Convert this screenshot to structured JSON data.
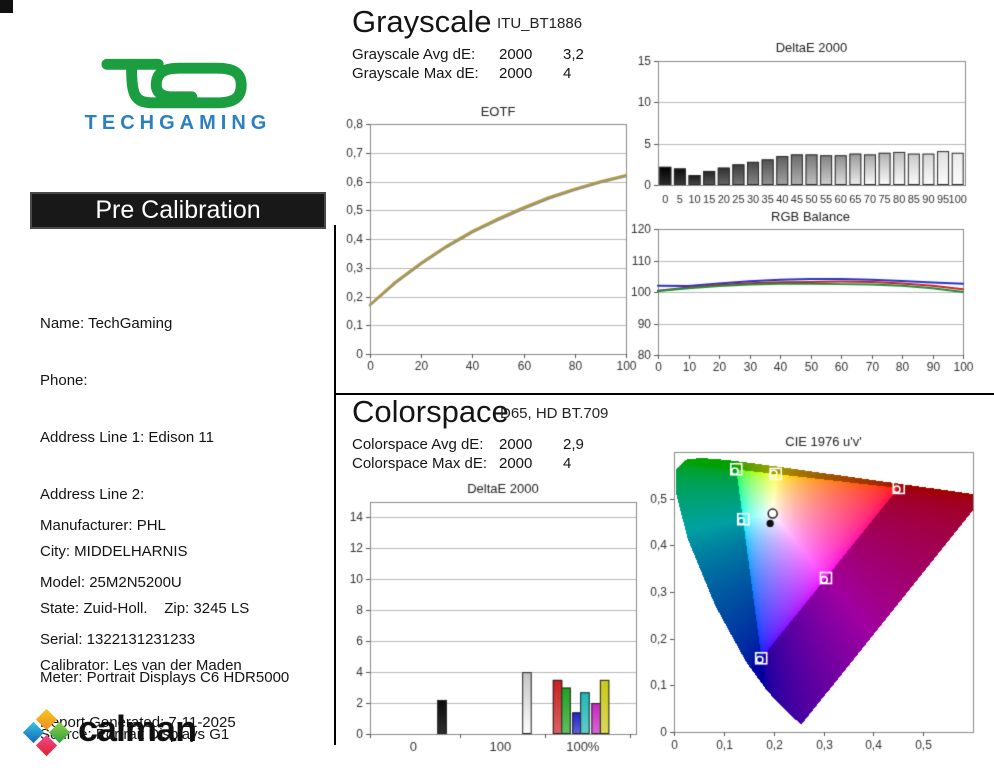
{
  "branding": {
    "logo_text": "TECHGAMING",
    "logo_text_color": "#2b80c1",
    "logo_glyph_color": "#1a9e3f",
    "footer_brand": "calman"
  },
  "report": {
    "title": "Pre Calibration",
    "info_lines": [
      "Name: TechGaming",
      "Phone:",
      "Address Line 1: Edison 11",
      "Address Line 2:",
      "City: MIDDELHARNIS",
      "State: Zuid-Holl.    Zip: 3245 LS",
      "Calibrator: Les van der Maden",
      "Report Generated: 7-11-2025"
    ],
    "device_lines": [
      "Manufacturer: PHL",
      "Model: 25M2N5200U",
      "Serial: 1322131231233"
    ],
    "equipment_lines": [
      "Meter: Portrait Displays C6 HDR5000",
      "Source: Portrait Displays G1"
    ]
  },
  "grayscale_section": {
    "title": "Grayscale",
    "subtitle": "ITU_BT1886",
    "stats": [
      {
        "label": "Grayscale Avg dE:",
        "standard": "2000",
        "value": "3,2"
      },
      {
        "label": "Grayscale Max dE:",
        "standard": "2000",
        "value": "4"
      }
    ]
  },
  "colorspace_section": {
    "title": "Colorspace",
    "subtitle": "D65, HD BT.709",
    "stats": [
      {
        "label": "Colorspace Avg dE:",
        "standard": "2000",
        "value": "2,9"
      },
      {
        "label": "Colorspace Max dE:",
        "standard": "2000",
        "value": "4"
      }
    ]
  },
  "chart_data": [
    {
      "id": "eotf",
      "type": "line",
      "title": "EOTF",
      "xlim": [
        0,
        100
      ],
      "ylim": [
        0,
        0.8
      ],
      "xticks": [
        0,
        20,
        40,
        60,
        80,
        100
      ],
      "xtick_labels": [
        "0",
        "20",
        "40",
        "60",
        "80",
        "100"
      ],
      "yticks": [
        0,
        0.1,
        0.2,
        0.3,
        0.4,
        0.5,
        0.6,
        0.7,
        0.8
      ],
      "ytick_labels": [
        "0",
        "0,1",
        "0,2",
        "0,3",
        "0,4",
        "0,5",
        "0,6",
        "0,7",
        "0,8"
      ],
      "x": [
        0,
        10,
        20,
        30,
        40,
        50,
        60,
        70,
        80,
        90,
        100
      ],
      "series": [
        {
          "name": "reference",
          "color": "#8f8f8f",
          "width": 2.6,
          "values": [
            0.17,
            0.248,
            0.314,
            0.373,
            0.424,
            0.467,
            0.506,
            0.542,
            0.571,
            0.597,
            0.619
          ]
        },
        {
          "name": "measured",
          "color": "#b09a3e",
          "width": 2.2,
          "values": [
            0.172,
            0.252,
            0.318,
            0.377,
            0.428,
            0.471,
            0.51,
            0.546,
            0.575,
            0.601,
            0.622
          ]
        }
      ]
    },
    {
      "id": "grayscale_deltae",
      "type": "bar",
      "title": "DeltaE 2000",
      "ylim": [
        0,
        15
      ],
      "yticks": [
        0,
        5,
        10,
        15
      ],
      "ytick_labels": [
        "0",
        "5",
        "10",
        "15"
      ],
      "categories": [
        0,
        5,
        10,
        15,
        20,
        25,
        30,
        35,
        40,
        45,
        50,
        55,
        60,
        65,
        70,
        75,
        80,
        85,
        90,
        95,
        100
      ],
      "values": [
        2.2,
        2.0,
        1.2,
        1.7,
        2.1,
        2.5,
        2.8,
        3.1,
        3.5,
        3.7,
        3.7,
        3.6,
        3.6,
        3.8,
        3.7,
        3.9,
        4.0,
        3.8,
        3.8,
        4.1,
        3.9
      ],
      "bar_style": "grayscale-gradient"
    },
    {
      "id": "rgb_balance",
      "type": "line",
      "title": "RGB Balance",
      "xlim": [
        0,
        100
      ],
      "ylim": [
        80,
        120
      ],
      "xticks": [
        0,
        10,
        20,
        30,
        40,
        50,
        60,
        70,
        80,
        90,
        100
      ],
      "xtick_labels": [
        "0",
        "10",
        "20",
        "30",
        "40",
        "50",
        "60",
        "70",
        "80",
        "90",
        "100"
      ],
      "yticks": [
        80,
        90,
        100,
        110,
        120
      ],
      "ytick_labels": [
        "80",
        "90",
        "100",
        "110",
        "120"
      ],
      "x": [
        0,
        10,
        20,
        30,
        40,
        50,
        60,
        70,
        80,
        90,
        100
      ],
      "series": [
        {
          "name": "blue",
          "color": "#2233cc",
          "width": 2,
          "values": [
            102.0,
            101.9,
            102.7,
            103.4,
            103.9,
            104.1,
            104.1,
            103.9,
            103.5,
            103.0,
            102.6
          ]
        },
        {
          "name": "red",
          "color": "#cc2222",
          "width": 2,
          "values": [
            100.4,
            101.4,
            102.2,
            102.8,
            103.1,
            103.2,
            103.3,
            103.2,
            102.7,
            102.0,
            100.9
          ]
        },
        {
          "name": "green",
          "color": "#1e8e3e",
          "width": 2,
          "values": [
            100.3,
            101.2,
            101.9,
            102.4,
            102.6,
            102.6,
            102.5,
            102.4,
            102.0,
            101.2,
            100.0
          ]
        }
      ]
    },
    {
      "id": "colorspace_deltae",
      "type": "bar",
      "title": "DeltaE 2000",
      "ylim": [
        0,
        15
      ],
      "yticks": [
        0,
        2,
        4,
        6,
        8,
        10,
        12,
        14
      ],
      "ytick_labels": [
        "0",
        "2",
        "4",
        "6",
        "8",
        "10",
        "12",
        "14"
      ],
      "groups": [
        {
          "label": "0",
          "bars": [
            {
              "name": "black",
              "color": "#0a0a0a",
              "fade": 0.15,
              "value": 2.2
            }
          ]
        },
        {
          "label": "100",
          "bars": [
            {
              "name": "white",
              "color": "#c4c4c4",
              "fade": 1.0,
              "value": 4.0
            }
          ]
        },
        {
          "label": "100%",
          "bars": [
            {
              "name": "red",
              "color": "#cc2020",
              "fade": 0.3,
              "value": 3.5
            },
            {
              "name": "green",
              "color": "#1fa41f",
              "fade": 0.3,
              "value": 3.0
            },
            {
              "name": "blue",
              "color": "#2020cc",
              "fade": 0.3,
              "value": 1.4
            },
            {
              "name": "cyan",
              "color": "#1fb8b8",
              "fade": 0.3,
              "value": 2.7
            },
            {
              "name": "magenta",
              "color": "#c428c4",
              "fade": 0.3,
              "value": 2.0
            },
            {
              "name": "yellow",
              "color": "#c9c916",
              "fade": 0.3,
              "value": 3.5
            }
          ]
        }
      ]
    },
    {
      "id": "cie",
      "type": "chromaticity",
      "title": "CIE 1976 u'v'",
      "xlim": [
        0,
        0.6
      ],
      "ylim": [
        0,
        0.6
      ],
      "xticks": [
        0,
        0.1,
        0.2,
        0.3,
        0.4,
        0.5
      ],
      "xtick_labels": [
        "0",
        "0,1",
        "0,2",
        "0,3",
        "0,4",
        "0,5"
      ],
      "yticks": [
        0,
        0.1,
        0.2,
        0.3,
        0.4,
        0.5
      ],
      "ytick_labels": [
        "0",
        "0,1",
        "0,2",
        "0,3",
        "0,4",
        "0,5"
      ],
      "gamut": "BT.709",
      "targets": [
        {
          "name": "red",
          "u": 0.451,
          "v": 0.523
        },
        {
          "name": "green",
          "u": 0.125,
          "v": 0.563
        },
        {
          "name": "blue",
          "u": 0.175,
          "v": 0.158
        },
        {
          "name": "cyan",
          "u": 0.139,
          "v": 0.456
        },
        {
          "name": "magenta",
          "u": 0.305,
          "v": 0.33
        },
        {
          "name": "yellow",
          "u": 0.204,
          "v": 0.553
        }
      ],
      "measured": [
        {
          "name": "red",
          "u": 0.447,
          "v": 0.52
        },
        {
          "name": "green",
          "u": 0.122,
          "v": 0.559
        },
        {
          "name": "blue",
          "u": 0.172,
          "v": 0.155
        },
        {
          "name": "cyan",
          "u": 0.135,
          "v": 0.452
        },
        {
          "name": "magenta",
          "u": 0.301,
          "v": 0.326
        },
        {
          "name": "yellow",
          "u": 0.2,
          "v": 0.554
        }
      ],
      "white_point": {
        "target": {
          "u": 0.198,
          "v": 0.468
        },
        "measured": {
          "u": 0.193,
          "v": 0.447
        }
      }
    }
  ]
}
